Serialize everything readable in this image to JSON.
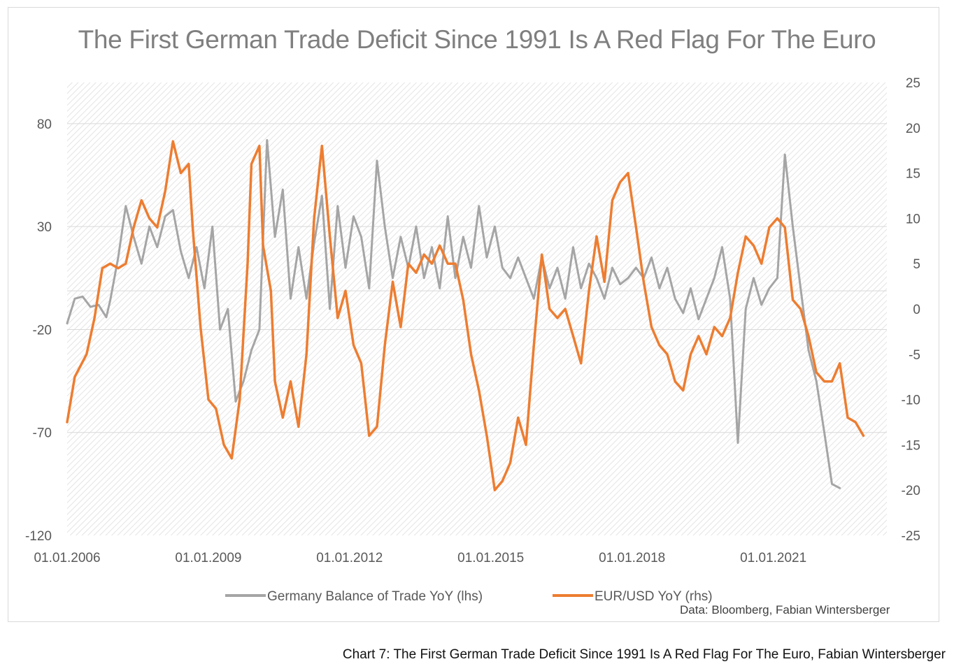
{
  "chart_data": {
    "type": "line",
    "title": "The First German Trade Deficit Since 1991 Is A Red Flag For The Euro",
    "x_tick_labels": [
      "01.01.2006",
      "01.01.2009",
      "01.01.2012",
      "01.01.2015",
      "01.01.2018",
      "01.01.2021"
    ],
    "x_range": [
      "2006-01-01",
      "2023-06-01"
    ],
    "left_axis": {
      "ticks": [
        "80",
        "30",
        "-20",
        "-70",
        "-120"
      ],
      "ylim": [
        -120,
        100
      ]
    },
    "right_axis": {
      "ticks": [
        "25",
        "20",
        "15",
        "10",
        "5",
        "0",
        "-5",
        "-10",
        "-15",
        "-20",
        "-25"
      ],
      "ylim": [
        -25,
        25
      ]
    },
    "grid": true,
    "legend_position": "bottom",
    "series": [
      {
        "name": "Germany Balance of Trade YoY (lhs)",
        "axis": "left",
        "color": "#a5a5a5",
        "points": [
          [
            "2006-01",
            -17
          ],
          [
            "2006-03",
            -5
          ],
          [
            "2006-05",
            -4
          ],
          [
            "2006-07",
            -9
          ],
          [
            "2006-09",
            -8
          ],
          [
            "2006-11",
            -14
          ],
          [
            "2006-12",
            -6
          ],
          [
            "2007-02",
            15
          ],
          [
            "2007-04",
            40
          ],
          [
            "2007-06",
            25
          ],
          [
            "2007-08",
            12
          ],
          [
            "2007-10",
            30
          ],
          [
            "2007-12",
            20
          ],
          [
            "2008-02",
            35
          ],
          [
            "2008-04",
            38
          ],
          [
            "2008-06",
            18
          ],
          [
            "2008-08",
            5
          ],
          [
            "2008-10",
            20
          ],
          [
            "2008-12",
            0
          ],
          [
            "2009-02",
            30
          ],
          [
            "2009-04",
            -20
          ],
          [
            "2009-06",
            -10
          ],
          [
            "2009-08",
            -55
          ],
          [
            "2009-10",
            -45
          ],
          [
            "2009-12",
            -30
          ],
          [
            "2010-02",
            -20
          ],
          [
            "2010-04",
            72
          ],
          [
            "2010-06",
            25
          ],
          [
            "2010-08",
            48
          ],
          [
            "2010-10",
            -5
          ],
          [
            "2010-12",
            20
          ],
          [
            "2011-02",
            -5
          ],
          [
            "2011-04",
            22
          ],
          [
            "2011-06",
            45
          ],
          [
            "2011-08",
            -10
          ],
          [
            "2011-10",
            40
          ],
          [
            "2011-12",
            10
          ],
          [
            "2012-02",
            35
          ],
          [
            "2012-04",
            25
          ],
          [
            "2012-06",
            0
          ],
          [
            "2012-08",
            62
          ],
          [
            "2012-10",
            30
          ],
          [
            "2012-12",
            5
          ],
          [
            "2013-02",
            25
          ],
          [
            "2013-04",
            10
          ],
          [
            "2013-06",
            30
          ],
          [
            "2013-08",
            5
          ],
          [
            "2013-10",
            20
          ],
          [
            "2013-12",
            0
          ],
          [
            "2014-02",
            35
          ],
          [
            "2014-04",
            5
          ],
          [
            "2014-06",
            25
          ],
          [
            "2014-08",
            10
          ],
          [
            "2014-10",
            40
          ],
          [
            "2014-12",
            15
          ],
          [
            "2015-02",
            30
          ],
          [
            "2015-04",
            10
          ],
          [
            "2015-06",
            5
          ],
          [
            "2015-08",
            15
          ],
          [
            "2015-10",
            5
          ],
          [
            "2015-12",
            -5
          ],
          [
            "2016-02",
            15
          ],
          [
            "2016-04",
            0
          ],
          [
            "2016-06",
            10
          ],
          [
            "2016-08",
            -5
          ],
          [
            "2016-10",
            20
          ],
          [
            "2016-12",
            0
          ],
          [
            "2017-02",
            12
          ],
          [
            "2017-04",
            5
          ],
          [
            "2017-06",
            -5
          ],
          [
            "2017-08",
            10
          ],
          [
            "2017-10",
            2
          ],
          [
            "2017-12",
            5
          ],
          [
            "2018-02",
            10
          ],
          [
            "2018-04",
            5
          ],
          [
            "2018-06",
            15
          ],
          [
            "2018-08",
            0
          ],
          [
            "2018-10",
            10
          ],
          [
            "2018-12",
            -5
          ],
          [
            "2019-02",
            -12
          ],
          [
            "2019-04",
            0
          ],
          [
            "2019-06",
            -15
          ],
          [
            "2019-08",
            -5
          ],
          [
            "2019-10",
            5
          ],
          [
            "2019-12",
            20
          ],
          [
            "2020-02",
            -5
          ],
          [
            "2020-04",
            -75
          ],
          [
            "2020-06",
            -10
          ],
          [
            "2020-08",
            5
          ],
          [
            "2020-10",
            -8
          ],
          [
            "2020-12",
            0
          ],
          [
            "2021-02",
            5
          ],
          [
            "2021-04",
            65
          ],
          [
            "2021-06",
            30
          ],
          [
            "2021-08",
            0
          ],
          [
            "2021-10",
            -30
          ],
          [
            "2021-12",
            -45
          ],
          [
            "2022-02",
            -70
          ],
          [
            "2022-04",
            -95
          ],
          [
            "2022-06",
            -97
          ]
        ]
      },
      {
        "name": "EUR/USD YoY (rhs)",
        "axis": "right",
        "color": "#ed7d31",
        "points": [
          [
            "2006-01",
            -12.5
          ],
          [
            "2006-03",
            -7.5
          ],
          [
            "2006-06",
            -5
          ],
          [
            "2006-08",
            -1
          ],
          [
            "2006-10",
            4.5
          ],
          [
            "2006-12",
            5
          ],
          [
            "2007-02",
            4.5
          ],
          [
            "2007-04",
            5
          ],
          [
            "2007-06",
            9
          ],
          [
            "2007-08",
            12
          ],
          [
            "2007-10",
            10
          ],
          [
            "2007-12",
            9
          ],
          [
            "2008-02",
            13
          ],
          [
            "2008-04",
            18.5
          ],
          [
            "2008-06",
            15
          ],
          [
            "2008-08",
            16
          ],
          [
            "2008-09",
            9
          ],
          [
            "2008-11",
            -2
          ],
          [
            "2009-01",
            -10
          ],
          [
            "2009-03",
            -11
          ],
          [
            "2009-05",
            -15
          ],
          [
            "2009-07",
            -16.5
          ],
          [
            "2009-09",
            -10
          ],
          [
            "2009-11",
            5
          ],
          [
            "2009-12",
            16
          ],
          [
            "2010-02",
            18
          ],
          [
            "2010-03",
            7
          ],
          [
            "2010-05",
            2
          ],
          [
            "2010-06",
            -8
          ],
          [
            "2010-08",
            -12
          ],
          [
            "2010-10",
            -8
          ],
          [
            "2010-12",
            -13
          ],
          [
            "2011-02",
            -5
          ],
          [
            "2011-04",
            10
          ],
          [
            "2011-06",
            18
          ],
          [
            "2011-08",
            8
          ],
          [
            "2011-10",
            -1
          ],
          [
            "2011-12",
            2
          ],
          [
            "2012-02",
            -4
          ],
          [
            "2012-04",
            -6
          ],
          [
            "2012-06",
            -14
          ],
          [
            "2012-08",
            -13
          ],
          [
            "2012-10",
            -4
          ],
          [
            "2012-12",
            3
          ],
          [
            "2013-02",
            -2
          ],
          [
            "2013-04",
            5
          ],
          [
            "2013-06",
            4
          ],
          [
            "2013-08",
            6
          ],
          [
            "2013-10",
            5
          ],
          [
            "2013-12",
            7
          ],
          [
            "2014-02",
            5
          ],
          [
            "2014-04",
            5
          ],
          [
            "2014-06",
            1
          ],
          [
            "2014-08",
            -5
          ],
          [
            "2014-10",
            -9
          ],
          [
            "2014-12",
            -14
          ],
          [
            "2015-02",
            -20
          ],
          [
            "2015-04",
            -19
          ],
          [
            "2015-06",
            -17
          ],
          [
            "2015-08",
            -12
          ],
          [
            "2015-10",
            -15
          ],
          [
            "2015-12",
            -4
          ],
          [
            "2016-02",
            6
          ],
          [
            "2016-04",
            0
          ],
          [
            "2016-06",
            -1
          ],
          [
            "2016-08",
            0
          ],
          [
            "2016-10",
            -3
          ],
          [
            "2016-12",
            -6
          ],
          [
            "2017-02",
            2
          ],
          [
            "2017-04",
            8
          ],
          [
            "2017-06",
            3
          ],
          [
            "2017-08",
            12
          ],
          [
            "2017-10",
            14
          ],
          [
            "2017-12",
            15
          ],
          [
            "2018-02",
            9
          ],
          [
            "2018-04",
            3
          ],
          [
            "2018-06",
            -2
          ],
          [
            "2018-08",
            -4
          ],
          [
            "2018-10",
            -5
          ],
          [
            "2018-12",
            -8
          ],
          [
            "2019-02",
            -9
          ],
          [
            "2019-04",
            -5
          ],
          [
            "2019-06",
            -3
          ],
          [
            "2019-08",
            -5
          ],
          [
            "2019-10",
            -2
          ],
          [
            "2019-12",
            -3
          ],
          [
            "2020-02",
            -1
          ],
          [
            "2020-04",
            4
          ],
          [
            "2020-06",
            8
          ],
          [
            "2020-08",
            7
          ],
          [
            "2020-10",
            5
          ],
          [
            "2020-12",
            9
          ],
          [
            "2021-02",
            10
          ],
          [
            "2021-04",
            9
          ],
          [
            "2021-06",
            1
          ],
          [
            "2021-08",
            0
          ],
          [
            "2021-10",
            -3
          ],
          [
            "2021-12",
            -7
          ],
          [
            "2022-02",
            -8
          ],
          [
            "2022-04",
            -8
          ],
          [
            "2022-06",
            -6
          ],
          [
            "2022-08",
            -12
          ],
          [
            "2022-10",
            -12.5
          ],
          [
            "2022-12",
            -14
          ]
        ]
      }
    ],
    "source": "Data: Bloomberg, Fabian Wintersberger"
  },
  "caption": "Chart 7: The First German Trade Deficit Since 1991 Is A Red Flag For The Euro, Fabian Wintersberger"
}
